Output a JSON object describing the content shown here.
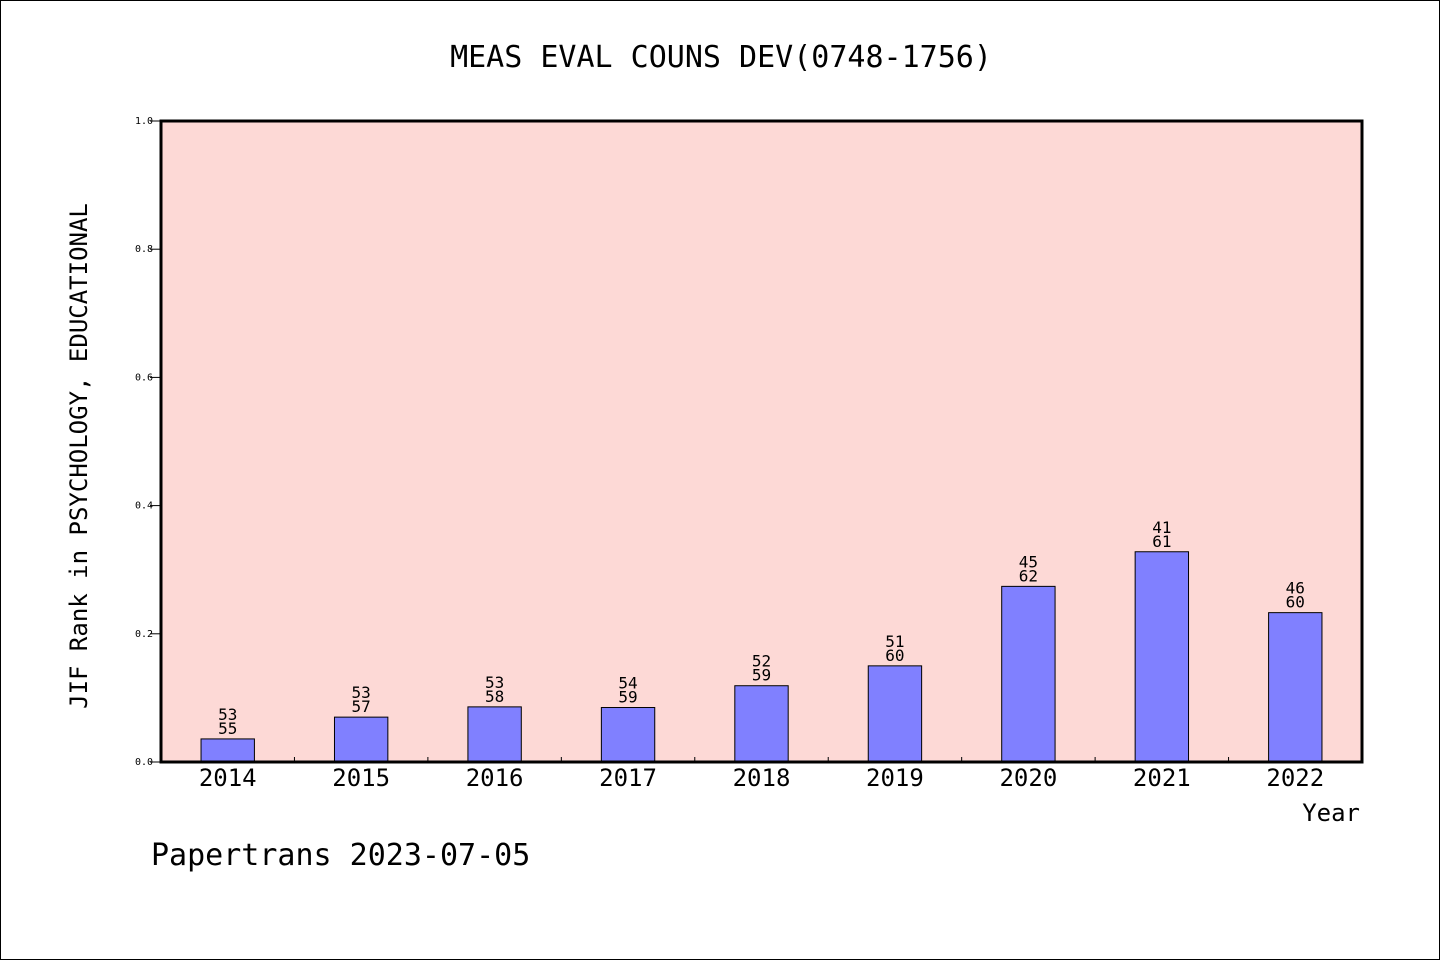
{
  "chart_data": {
    "type": "bar",
    "title": "MEAS EVAL COUNS DEV(0748-1756)",
    "xlabel": "Year",
    "ylabel": "JIF Rank in PSYCHOLOGY, EDUCATIONAL",
    "ylim": [
      0,
      1.0
    ],
    "yticks": [
      "0.0",
      "0.2",
      "0.4",
      "0.6",
      "0.8",
      "1.0"
    ],
    "grid": false,
    "categories": [
      "2014",
      "2015",
      "2016",
      "2017",
      "2018",
      "2019",
      "2020",
      "2021",
      "2022"
    ],
    "values": [
      0.036,
      0.07,
      0.086,
      0.085,
      0.119,
      0.15,
      0.274,
      0.328,
      0.233
    ],
    "labels": [
      [
        "53",
        "55"
      ],
      [
        "53",
        "57"
      ],
      [
        "53",
        "58"
      ],
      [
        "54",
        "59"
      ],
      [
        "52",
        "59"
      ],
      [
        "51",
        "60"
      ],
      [
        "45",
        "62"
      ],
      [
        "41",
        "61"
      ],
      [
        "46",
        "60"
      ]
    ]
  },
  "colors": {
    "plot_background": "#fdd9d6",
    "bar_fill": "#8080ff",
    "bar_stroke": "#000000",
    "axis": "#000000"
  },
  "footer": "Papertrans 2023-07-05"
}
